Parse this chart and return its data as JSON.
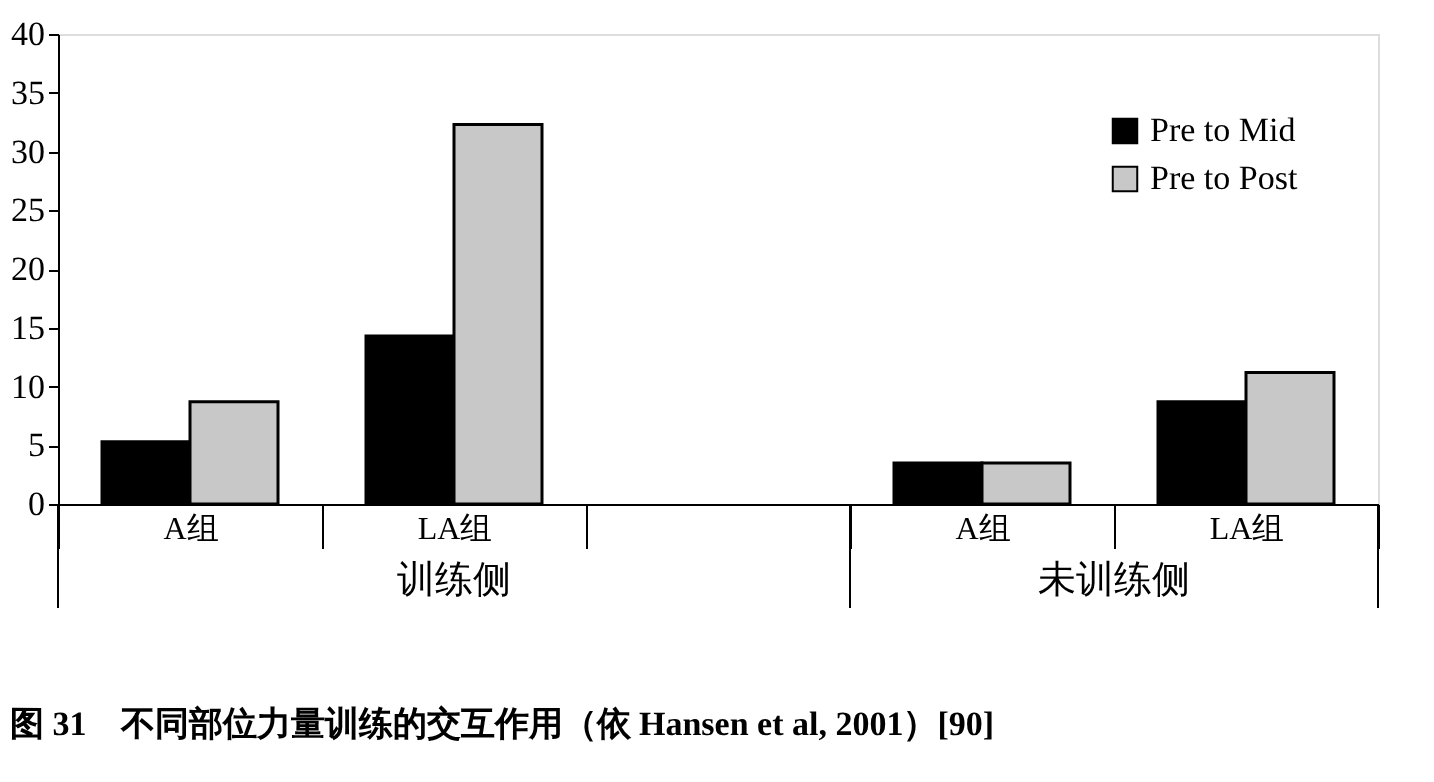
{
  "chart_data": {
    "type": "bar",
    "title": "图 31　不同部位力量训练的交互作用（依 Hansen et al, 2001）[90]",
    "categories": [
      "A组",
      "LA组",
      null,
      "A组",
      "LA组"
    ],
    "annotations": [
      "训练侧",
      "未训练侧"
    ],
    "series": [
      {
        "name": "Pre to Mid",
        "color": "#000000",
        "values": [
          5.3,
          14.3,
          null,
          3.5,
          8.7
        ]
      },
      {
        "name": "Pre to Post",
        "color": "#c8c8c8",
        "values": [
          8.7,
          32.3,
          null,
          3.5,
          11.2
        ]
      }
    ],
    "ylim": [
      0,
      40
    ],
    "yticks": [
      0,
      5,
      10,
      15,
      20,
      25,
      30,
      35,
      40
    ],
    "grid": false,
    "legend": "top right"
  }
}
